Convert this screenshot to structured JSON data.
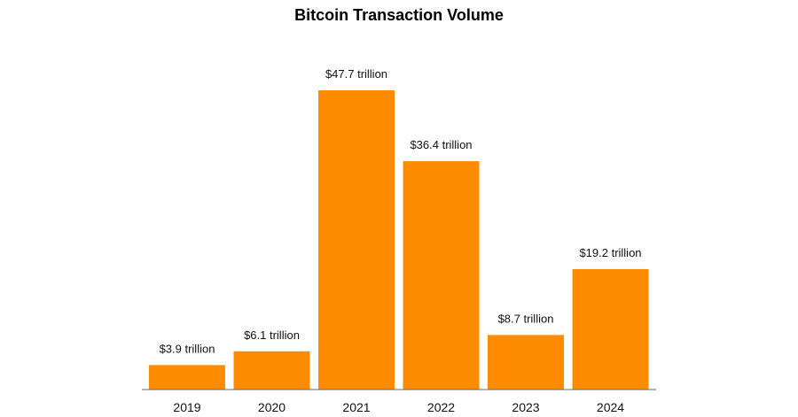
{
  "chart_data": {
    "type": "bar",
    "title": "Bitcoin Transaction Volume",
    "xlabel": "",
    "ylabel": "",
    "categories": [
      "2019",
      "2020",
      "2021",
      "2022",
      "2023",
      "2024"
    ],
    "values": [
      3.9,
      6.1,
      47.7,
      36.4,
      8.7,
      19.2
    ],
    "value_labels": [
      "$3.9 trillion",
      "$6.1 trillion",
      "$47.7 trillion",
      "$36.4 trillion",
      "$8.7 trillion",
      "$19.2 trillion"
    ],
    "ylim": [
      0,
      50
    ],
    "grid": false,
    "legend": "none",
    "bar_color": "#ff8c00",
    "axis_color": "#666666"
  }
}
